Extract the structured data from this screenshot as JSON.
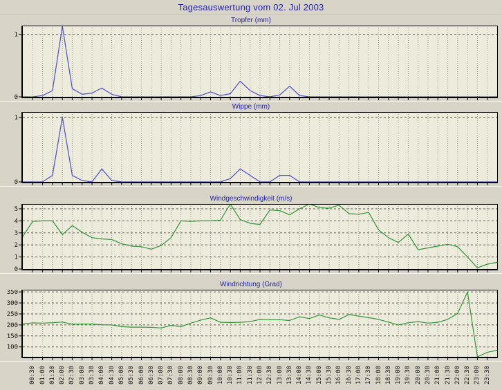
{
  "page_title": "Tagesauswertung vom 02. Jul 2003",
  "colors": {
    "background": "#d8d5c8",
    "plot_background": "#edebdc",
    "title_text": "#2222b2",
    "rain_line_blue": "#4c4ccc",
    "wind_line_green": "#2e9536",
    "grid_vertical": "#98978b",
    "grid_horizontal": "#5f5e54",
    "axis": "#000000",
    "tick_label": "#111111"
  },
  "x_axis": {
    "tick_labels": [
      "00:30",
      "01:00",
      "01:30",
      "02:00",
      "02:30",
      "03:00",
      "03:30",
      "04:00",
      "04:30",
      "05:00",
      "05:30",
      "06:00",
      "06:30",
      "07:00",
      "07:30",
      "08:00",
      "08:30",
      "09:00",
      "09:30",
      "10:00",
      "10:30",
      "11:00",
      "11:30",
      "12:00",
      "12:30",
      "13:00",
      "13:30",
      "14:00",
      "14:30",
      "15:00",
      "15:30",
      "16:00",
      "16:30",
      "17:00",
      "17:30",
      "18:00",
      "18:30",
      "19:00",
      "19:30",
      "20:00",
      "20:30",
      "21:00",
      "21:30",
      "22:00",
      "22:30",
      "23:00",
      "23:30"
    ]
  },
  "chart_data": [
    {
      "type": "line",
      "title": "Tropfer (mm)",
      "color": "#4c4ccc",
      "x_start": "00:00",
      "x_step_minutes": 30,
      "y_ticks": [
        0,
        1
      ],
      "y_range": [
        0,
        1.14
      ],
      "grid": true,
      "values": [
        0,
        0,
        0.02,
        0.1,
        1.13,
        0.13,
        0.04,
        0.06,
        0.14,
        0.04,
        0,
        0,
        0,
        0,
        0,
        0,
        0,
        0,
        0.02,
        0.08,
        0.02,
        0.05,
        0.25,
        0.1,
        0.02,
        0,
        0.03,
        0.17,
        0.02,
        0,
        0,
        0,
        0,
        0,
        0,
        0,
        0,
        0,
        0,
        0,
        0,
        0,
        0,
        0,
        0,
        0,
        0,
        0,
        0
      ]
    },
    {
      "type": "line",
      "title": "Wippe (mm)",
      "color": "#4c4ccc",
      "x_start": "00:00",
      "x_step_minutes": 30,
      "y_ticks": [
        0,
        1
      ],
      "y_range": [
        0,
        1.08
      ],
      "grid": true,
      "values": [
        0,
        0,
        0,
        0.1,
        1.0,
        0.1,
        0.02,
        0,
        0.2,
        0.02,
        0,
        0,
        0,
        0,
        0,
        0,
        0,
        0,
        0,
        0,
        0,
        0.05,
        0.2,
        0.1,
        0,
        0,
        0.1,
        0.1,
        0,
        0,
        0,
        0,
        0,
        0,
        0,
        0,
        0,
        0,
        0,
        0,
        0,
        0,
        0,
        0,
        0,
        0,
        0,
        0,
        0
      ]
    },
    {
      "type": "line",
      "title": "Windgeschwindigkeit (m/s)",
      "color": "#2e9536",
      "x_start": "00:00",
      "x_step_minutes": 30,
      "y_ticks": [
        0,
        1,
        2,
        3,
        4,
        5
      ],
      "y_range": [
        0,
        5.4
      ],
      "grid": true,
      "values": [
        2.7,
        3.95,
        4.0,
        4.0,
        2.85,
        3.6,
        3.05,
        2.6,
        2.5,
        2.45,
        2.1,
        1.9,
        1.85,
        1.65,
        1.95,
        2.6,
        4.0,
        3.95,
        4.0,
        4.0,
        4.05,
        5.6,
        4.1,
        3.8,
        3.7,
        4.9,
        4.85,
        4.5,
        5.0,
        5.5,
        5.1,
        5.05,
        5.3,
        4.6,
        4.55,
        4.7,
        3.25,
        2.6,
        2.2,
        2.9,
        1.6,
        1.75,
        1.9,
        2.05,
        1.85,
        1.0,
        0.1,
        0.4,
        0.55
      ]
    },
    {
      "type": "line",
      "title": "Windrichtung (Grad)",
      "color": "#2e9536",
      "x_start": "00:00",
      "x_step_minutes": 30,
      "y_ticks": [
        100,
        150,
        200,
        250,
        300,
        350
      ],
      "y_range": [
        55,
        360
      ],
      "grid": true,
      "values": [
        205,
        209,
        208,
        210,
        213,
        203,
        204,
        204,
        201,
        200,
        192,
        190,
        190,
        189,
        186,
        198,
        192,
        208,
        222,
        232,
        212,
        211,
        212,
        215,
        225,
        224,
        224,
        220,
        237,
        229,
        245,
        232,
        225,
        247,
        240,
        233,
        225,
        213,
        200,
        210,
        215,
        208,
        212,
        225,
        252,
        350,
        55,
        75,
        85
      ]
    }
  ]
}
